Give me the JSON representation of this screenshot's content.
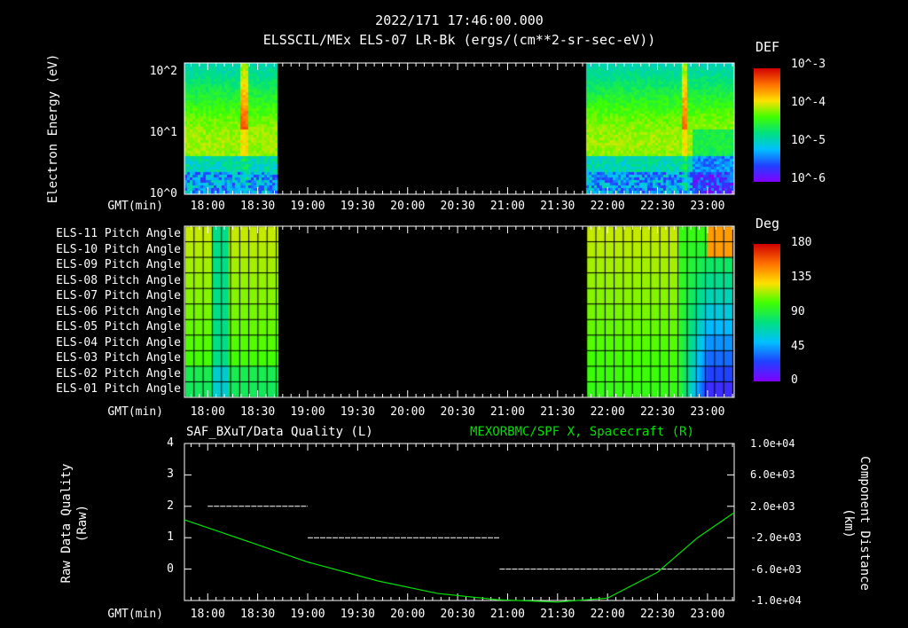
{
  "header": {
    "timestamp": "2022/171 17:46:00.000",
    "title": "ELSSCIL/MEx ELS-07 LR-Bk  (ergs/(cm**2-sr-sec-eV))"
  },
  "time_axis": {
    "label": "GMT(min)",
    "ticks": [
      "18:00",
      "18:30",
      "19:00",
      "19:30",
      "20:00",
      "20:30",
      "21:00",
      "21:30",
      "22:00",
      "22:30",
      "23:00"
    ],
    "start_hours": 17.767,
    "end_hours": 23.267
  },
  "chart_data": [
    {
      "type": "heatmap",
      "name": "energy-spectrogram",
      "ylabel": "Electron Energy (eV)",
      "yscale": "log",
      "ylim": [
        1,
        140
      ],
      "ytick_labels": [
        "10^0",
        "10^1",
        "10^2"
      ],
      "data_intervals_hours": [
        [
          17.767,
          18.69
        ],
        [
          21.78,
          23.267
        ]
      ],
      "colorbar": {
        "label": "DEF",
        "scale": "log",
        "range": [
          1e-06,
          0.001
        ],
        "tick_labels": [
          "10^-3",
          "10^-4",
          "10^-5",
          "10^-6"
        ]
      }
    },
    {
      "type": "heatmap",
      "name": "pitch-angle",
      "rows": [
        "ELS-11 Pitch Angle",
        "ELS-10 Pitch Angle",
        "ELS-09 Pitch Angle",
        "ELS-08 Pitch Angle",
        "ELS-07 Pitch Angle",
        "ELS-06 Pitch Angle",
        "ELS-05 Pitch Angle",
        "ELS-04 Pitch Angle",
        "ELS-03 Pitch Angle",
        "ELS-02 Pitch Angle",
        "ELS-01 Pitch Angle"
      ],
      "data_intervals_hours": [
        [
          17.767,
          18.69
        ],
        [
          21.78,
          23.267
        ]
      ],
      "colorbar": {
        "label": "Deg",
        "range": [
          0,
          180
        ],
        "tick_labels": [
          "180",
          "135",
          "90",
          "45",
          "0"
        ]
      }
    },
    {
      "type": "line",
      "name": "quality-and-distance",
      "left_title": "SAF_BXuT/Data Quality (L)",
      "right_title": "MEXORBMC/SPF X, Spacecraft (R)",
      "ylabel_left": "Raw Data Quality (Raw)",
      "ylabel_right": "Component Distance (km)",
      "ylim_left": [
        -1,
        4
      ],
      "ylim_right": [
        -10000,
        10000
      ],
      "left_tick_labels": [
        "4",
        "3",
        "2",
        "1",
        "0"
      ],
      "right_tick_labels": [
        "1.0e+04",
        "6.0e+03",
        "2.0e+03",
        "-2.0e+03",
        "-6.0e+03",
        "-1.0e+04"
      ],
      "series": [
        {
          "name": "Data Quality",
          "color": "#ffffff",
          "segments": [
            {
              "x": [
                18.0,
                19.0
              ],
              "y": 2
            },
            {
              "x": [
                19.0,
                20.92
              ],
              "y": 1
            },
            {
              "x": [
                20.92,
                23.2
              ],
              "y": 0
            }
          ]
        },
        {
          "name": "SPF X Spacecraft",
          "color": "#00e000",
          "x": [
            17.767,
            18.5,
            19.0,
            19.7,
            20.3,
            20.9,
            21.5,
            22.0,
            22.5,
            22.9,
            23.267
          ],
          "y": [
            280,
            -2900,
            -5100,
            -7500,
            -9100,
            -9900,
            -10200,
            -9700,
            -6400,
            -2000,
            1200
          ]
        }
      ]
    }
  ]
}
